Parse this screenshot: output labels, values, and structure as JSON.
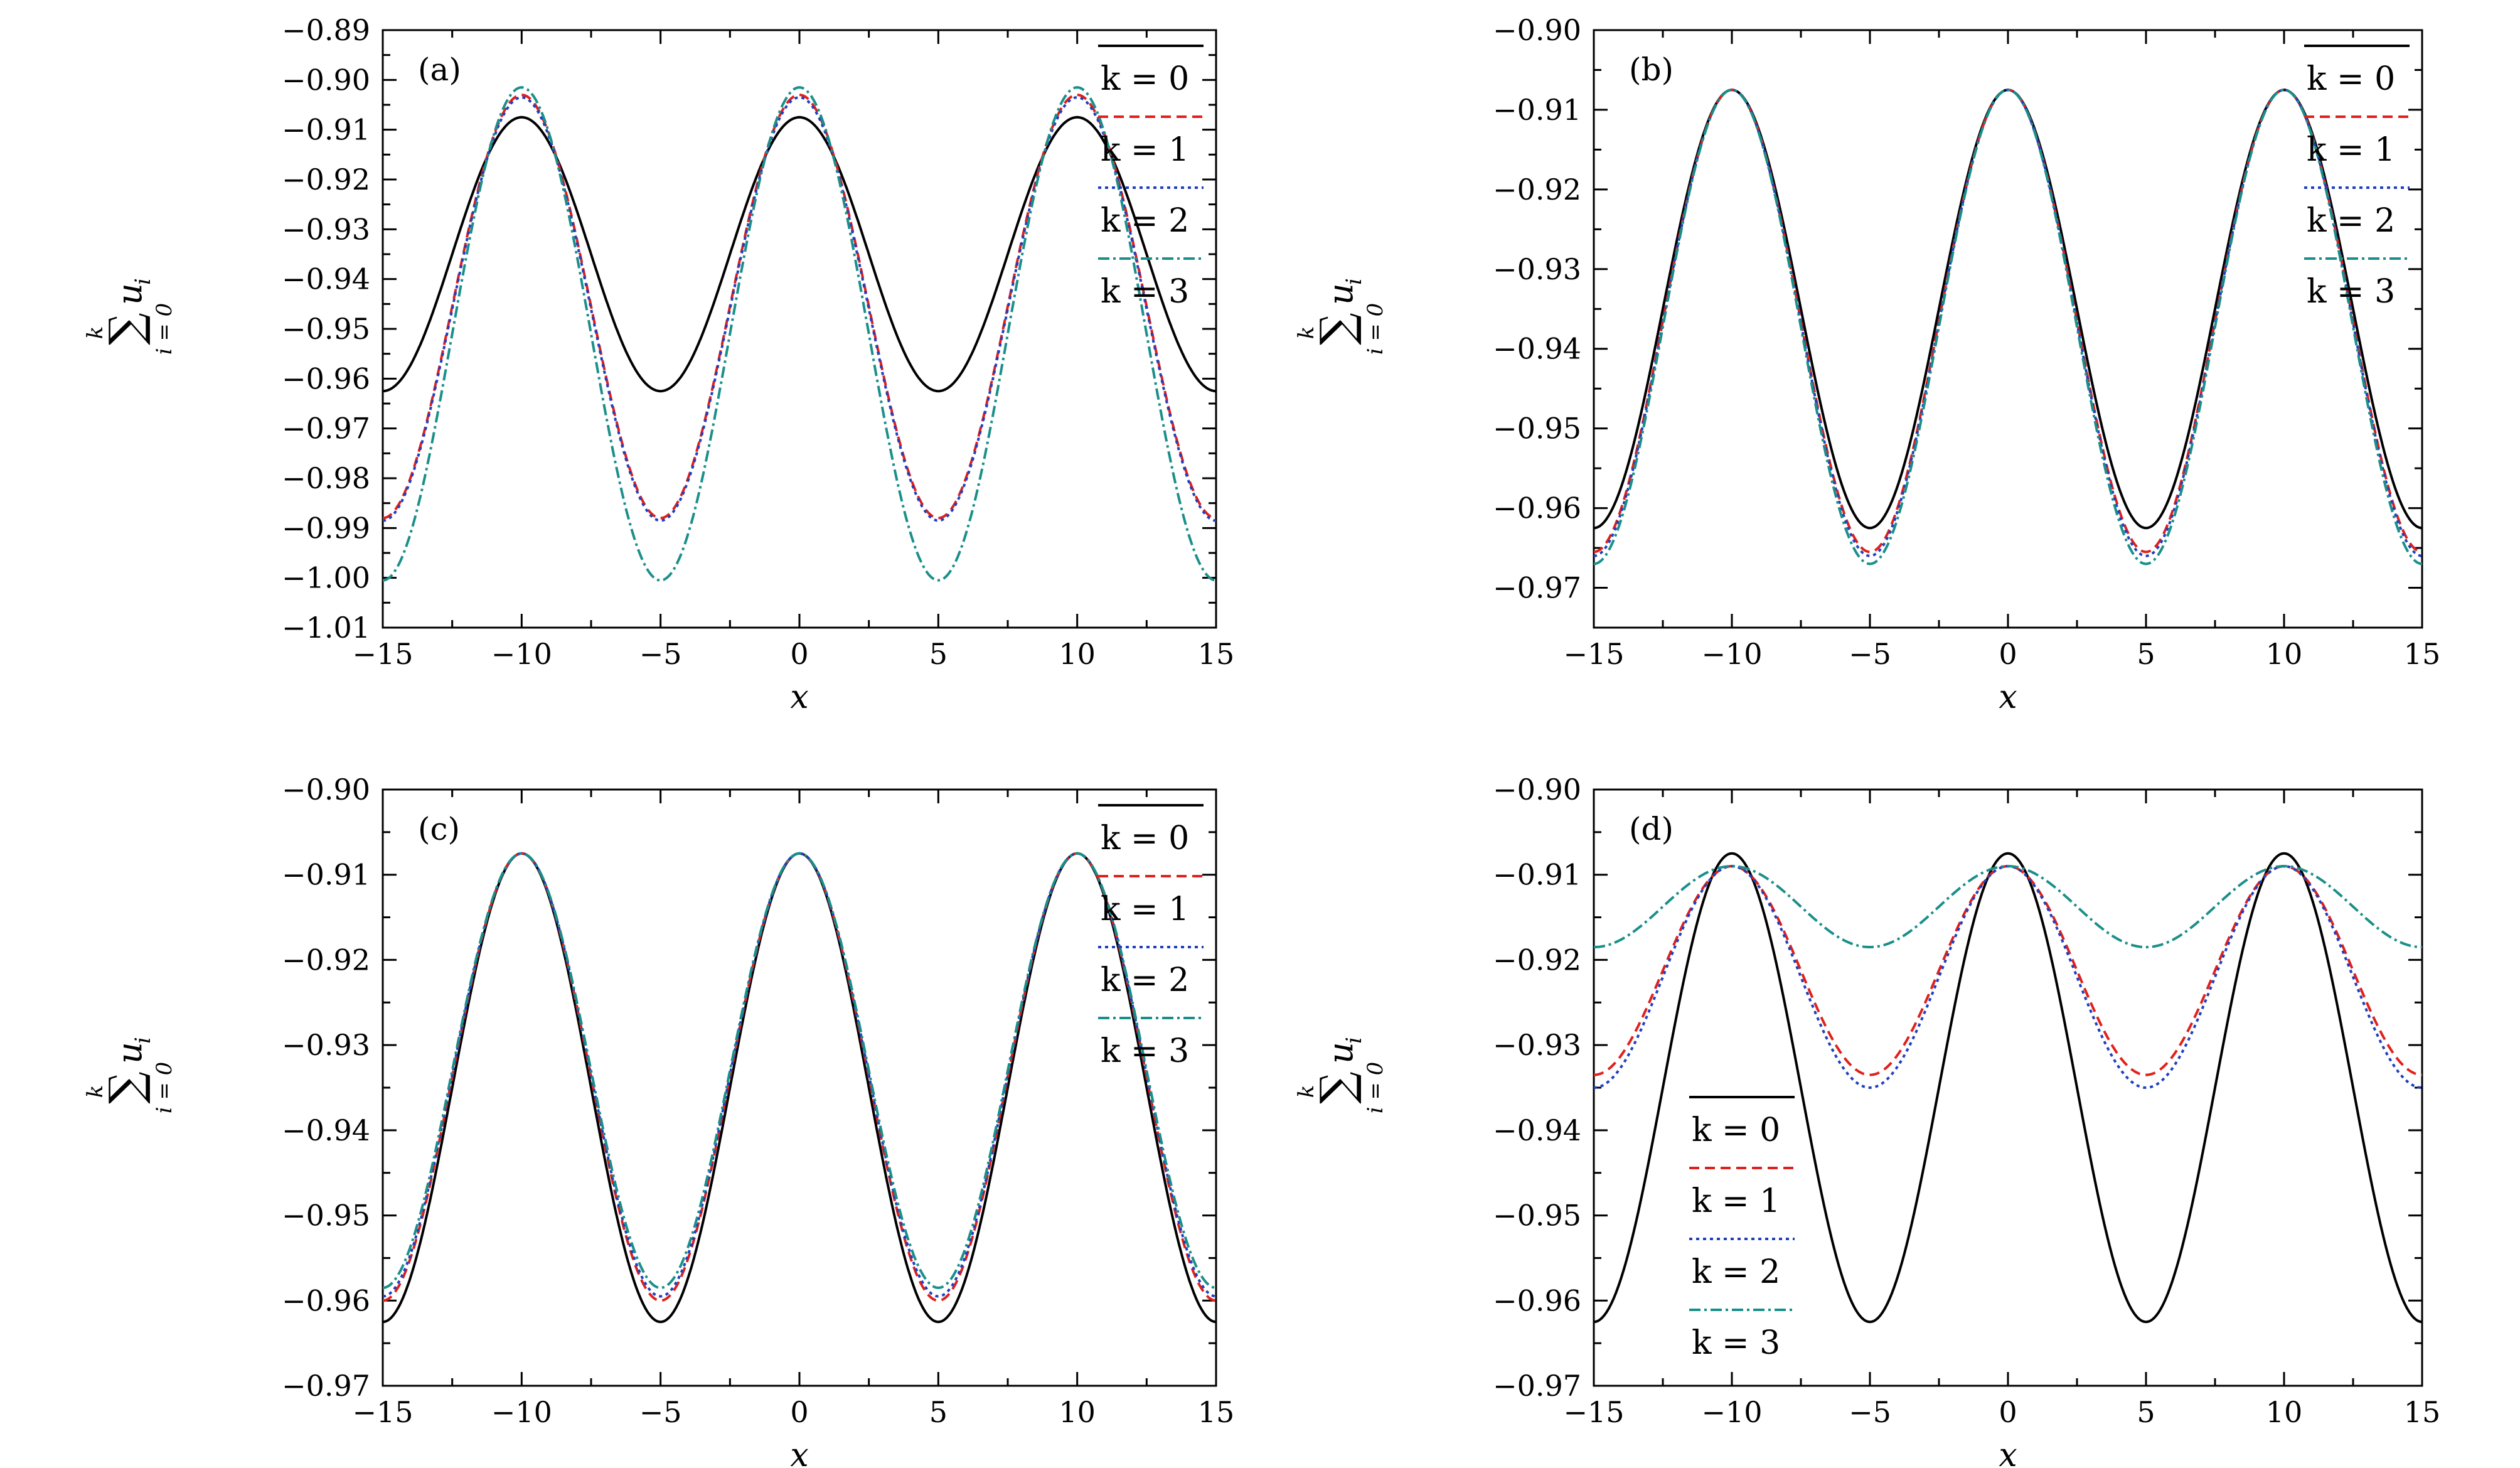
{
  "chart_data": [
    {
      "type": "line",
      "panel_label": "(a)",
      "xlabel": "x",
      "ylabel": {
        "sum_upper": "k",
        "sum_symbol": "∑",
        "sum_lower": "i = 0",
        "term": "u",
        "term_sub": "i"
      },
      "xlim": [
        -15,
        15
      ],
      "ylim": [
        -1.01,
        -0.89
      ],
      "xticks": [
        -15,
        -10,
        -5,
        0,
        5,
        10,
        15
      ],
      "xtick_labels": [
        "−15",
        "−10",
        "−5",
        "0",
        "5",
        "10",
        "15"
      ],
      "yticks": [
        -0.89,
        -0.9,
        -0.91,
        -0.92,
        -0.93,
        -0.94,
        -0.95,
        -0.96,
        -0.97,
        -0.98,
        -0.99,
        -1.0,
        -1.01
      ],
      "ytick_labels": [
        "−0.89",
        "−0.90",
        "−0.91",
        "−0.92",
        "−0.93",
        "−0.94",
        "−0.95",
        "−0.96",
        "−0.97",
        "−0.98",
        "−0.99",
        "−1.00",
        "−1.01"
      ],
      "legend_position": "top-right",
      "series": [
        {
          "name": "k = 0",
          "color": "#000000",
          "dash": "solid",
          "x": [
            -15,
            -12.5,
            -10,
            -7.5,
            -5,
            -2.5,
            0,
            2.5,
            5,
            7.5,
            10,
            12.5,
            15
          ],
          "y": [
            -0.9625,
            -0.935,
            -0.9075,
            -0.935,
            -0.9625,
            -0.935,
            -0.9075,
            -0.935,
            -0.9625,
            -0.935,
            -0.9075,
            -0.935,
            -0.9625
          ]
        },
        {
          "name": "k = 1",
          "color": "#e0201b",
          "dash": "dashed",
          "x": [
            -15,
            -12.5,
            -10,
            -7.5,
            -5,
            -2.5,
            0,
            2.5,
            5,
            7.5,
            10,
            12.5,
            15
          ],
          "y": [
            -0.988,
            -0.9455,
            -0.903,
            -0.9455,
            -0.988,
            -0.9455,
            -0.903,
            -0.9455,
            -0.988,
            -0.9455,
            -0.903,
            -0.9455,
            -0.988
          ]
        },
        {
          "name": "k = 2",
          "color": "#1f3fbf",
          "dash": "dotted",
          "x": [
            -15,
            -12.5,
            -10,
            -7.5,
            -5,
            -2.5,
            0,
            2.5,
            5,
            7.5,
            10,
            12.5,
            15
          ],
          "y": [
            -0.9885,
            -0.946,
            -0.9035,
            -0.946,
            -0.9885,
            -0.946,
            -0.9035,
            -0.946,
            -0.9885,
            -0.946,
            -0.9035,
            -0.946,
            -0.9885
          ]
        },
        {
          "name": "k = 3",
          "color": "#1a8f8a",
          "dash": "dashdot",
          "x": [
            -15,
            -12.5,
            -10,
            -7.5,
            -5,
            -2.5,
            0,
            2.5,
            5,
            7.5,
            10,
            12.5,
            15
          ],
          "y": [
            -1.0005,
            -0.951,
            -0.9015,
            -0.951,
            -1.0005,
            -0.951,
            -0.9015,
            -0.951,
            -1.0005,
            -0.951,
            -0.9015,
            -0.951,
            -1.0005
          ]
        }
      ]
    },
    {
      "type": "line",
      "panel_label": "(b)",
      "xlabel": "x",
      "ylabel": {
        "sum_upper": "k",
        "sum_symbol": "∑",
        "sum_lower": "i = 0",
        "term": "u",
        "term_sub": "i"
      },
      "xlim": [
        -15,
        15
      ],
      "ylim": [
        -0.975,
        -0.9
      ],
      "xticks": [
        -15,
        -10,
        -5,
        0,
        5,
        10,
        15
      ],
      "xtick_labels": [
        "−15",
        "−10",
        "−5",
        "0",
        "5",
        "10",
        "15"
      ],
      "yticks": [
        -0.9,
        -0.91,
        -0.92,
        -0.93,
        -0.94,
        -0.95,
        -0.96,
        -0.97
      ],
      "ytick_labels": [
        "−0.90",
        "−0.91",
        "−0.92",
        "−0.93",
        "−0.94",
        "−0.95",
        "−0.96",
        "−0.97"
      ],
      "legend_position": "top-right",
      "series": [
        {
          "name": "k = 0",
          "color": "#000000",
          "dash": "solid",
          "x": [
            -15,
            -12.5,
            -10,
            -7.5,
            -5,
            -2.5,
            0,
            2.5,
            5,
            7.5,
            10,
            12.5,
            15
          ],
          "y": [
            -0.9625,
            -0.935,
            -0.9075,
            -0.935,
            -0.9625,
            -0.935,
            -0.9075,
            -0.935,
            -0.9625,
            -0.935,
            -0.9075,
            -0.935,
            -0.9625
          ]
        },
        {
          "name": "k = 1",
          "color": "#e0201b",
          "dash": "dashed",
          "x": [
            -15,
            -12.5,
            -10,
            -7.5,
            -5,
            -2.5,
            0,
            2.5,
            5,
            7.5,
            10,
            12.5,
            15
          ],
          "y": [
            -0.9655,
            -0.9365,
            -0.9075,
            -0.9365,
            -0.9655,
            -0.9365,
            -0.9075,
            -0.9365,
            -0.9655,
            -0.9365,
            -0.9075,
            -0.9365,
            -0.9655
          ]
        },
        {
          "name": "k = 2",
          "color": "#1f3fbf",
          "dash": "dotted",
          "x": [
            -15,
            -12.5,
            -10,
            -7.5,
            -5,
            -2.5,
            0,
            2.5,
            5,
            7.5,
            10,
            12.5,
            15
          ],
          "y": [
            -0.966,
            -0.93675,
            -0.9075,
            -0.93675,
            -0.966,
            -0.93675,
            -0.9075,
            -0.93675,
            -0.966,
            -0.93675,
            -0.9075,
            -0.93675,
            -0.966
          ]
        },
        {
          "name": "k = 3",
          "color": "#1a8f8a",
          "dash": "dashdot",
          "x": [
            -15,
            -12.5,
            -10,
            -7.5,
            -5,
            -2.5,
            0,
            2.5,
            5,
            7.5,
            10,
            12.5,
            15
          ],
          "y": [
            -0.967,
            -0.93725,
            -0.9075,
            -0.93725,
            -0.967,
            -0.93725,
            -0.9075,
            -0.93725,
            -0.967,
            -0.93725,
            -0.9075,
            -0.93725,
            -0.967
          ]
        }
      ]
    },
    {
      "type": "line",
      "panel_label": "(c)",
      "xlabel": "x",
      "ylabel": {
        "sum_upper": "k",
        "sum_symbol": "∑",
        "sum_lower": "i = 0",
        "term": "u",
        "term_sub": "i"
      },
      "xlim": [
        -15,
        15
      ],
      "ylim": [
        -0.97,
        -0.9
      ],
      "xticks": [
        -15,
        -10,
        -5,
        0,
        5,
        10,
        15
      ],
      "xtick_labels": [
        "−15",
        "−10",
        "−5",
        "0",
        "5",
        "10",
        "15"
      ],
      "yticks": [
        -0.9,
        -0.91,
        -0.92,
        -0.93,
        -0.94,
        -0.95,
        -0.96,
        -0.97
      ],
      "ytick_labels": [
        "−0.90",
        "−0.91",
        "−0.92",
        "−0.93",
        "−0.94",
        "−0.95",
        "−0.96",
        "−0.97"
      ],
      "legend_position": "top-right",
      "series": [
        {
          "name": "k = 0",
          "color": "#000000",
          "dash": "solid",
          "x": [
            -15,
            -12.5,
            -10,
            -7.5,
            -5,
            -2.5,
            0,
            2.5,
            5,
            7.5,
            10,
            12.5,
            15
          ],
          "y": [
            -0.9625,
            -0.935,
            -0.9075,
            -0.935,
            -0.9625,
            -0.935,
            -0.9075,
            -0.935,
            -0.9625,
            -0.935,
            -0.9075,
            -0.935,
            -0.9625
          ]
        },
        {
          "name": "k = 1",
          "color": "#e0201b",
          "dash": "dashed",
          "x": [
            -15,
            -12.5,
            -10,
            -7.5,
            -5,
            -2.5,
            0,
            2.5,
            5,
            7.5,
            10,
            12.5,
            15
          ],
          "y": [
            -0.96,
            -0.93375,
            -0.9075,
            -0.93375,
            -0.96,
            -0.93375,
            -0.9075,
            -0.93375,
            -0.96,
            -0.93375,
            -0.9075,
            -0.93375,
            -0.96
          ]
        },
        {
          "name": "k = 2",
          "color": "#1f3fbf",
          "dash": "dotted",
          "x": [
            -15,
            -12.5,
            -10,
            -7.5,
            -5,
            -2.5,
            0,
            2.5,
            5,
            7.5,
            10,
            12.5,
            15
          ],
          "y": [
            -0.9595,
            -0.9335,
            -0.9075,
            -0.9335,
            -0.9595,
            -0.9335,
            -0.9075,
            -0.9335,
            -0.9595,
            -0.9335,
            -0.9075,
            -0.9335,
            -0.9595
          ]
        },
        {
          "name": "k = 3",
          "color": "#1a8f8a",
          "dash": "dashdot",
          "x": [
            -15,
            -12.5,
            -10,
            -7.5,
            -5,
            -2.5,
            0,
            2.5,
            5,
            7.5,
            10,
            12.5,
            15
          ],
          "y": [
            -0.9585,
            -0.933,
            -0.9075,
            -0.933,
            -0.9585,
            -0.933,
            -0.9075,
            -0.933,
            -0.9585,
            -0.933,
            -0.9075,
            -0.933,
            -0.9585
          ]
        }
      ]
    },
    {
      "type": "line",
      "panel_label": "(d)",
      "xlabel": "x",
      "ylabel": {
        "sum_upper": "k",
        "sum_symbol": "∑",
        "sum_lower": "i = 0",
        "term": "u",
        "term_sub": "i"
      },
      "xlim": [
        -15,
        15
      ],
      "ylim": [
        -0.97,
        -0.9
      ],
      "xticks": [
        -15,
        -10,
        -5,
        0,
        5,
        10,
        15
      ],
      "xtick_labels": [
        "−15",
        "−10",
        "−5",
        "0",
        "5",
        "10",
        "15"
      ],
      "yticks": [
        -0.9,
        -0.91,
        -0.92,
        -0.93,
        -0.94,
        -0.95,
        -0.96,
        -0.97
      ],
      "ytick_labels": [
        "−0.90",
        "−0.91",
        "−0.92",
        "−0.93",
        "−0.94",
        "−0.95",
        "−0.96",
        "−0.97"
      ],
      "legend_position": "bottom-left",
      "series": [
        {
          "name": "k = 0",
          "color": "#000000",
          "dash": "solid",
          "x": [
            -15,
            -12.5,
            -10,
            -7.5,
            -5,
            -2.5,
            0,
            2.5,
            5,
            7.5,
            10,
            12.5,
            15
          ],
          "y": [
            -0.9625,
            -0.935,
            -0.9075,
            -0.935,
            -0.9625,
            -0.935,
            -0.9075,
            -0.935,
            -0.9625,
            -0.935,
            -0.9075,
            -0.935,
            -0.9625
          ]
        },
        {
          "name": "k = 1",
          "color": "#e0201b",
          "dash": "dashed",
          "x": [
            -15,
            -12.5,
            -10,
            -7.5,
            -5,
            -2.5,
            0,
            2.5,
            5,
            7.5,
            10,
            12.5,
            15
          ],
          "y": [
            -0.9335,
            -0.9212,
            -0.909,
            -0.9212,
            -0.9335,
            -0.9212,
            -0.909,
            -0.9212,
            -0.9335,
            -0.9212,
            -0.909,
            -0.9212,
            -0.9335
          ]
        },
        {
          "name": "k = 2",
          "color": "#1f3fbf",
          "dash": "dotted",
          "x": [
            -15,
            -12.5,
            -10,
            -7.5,
            -5,
            -2.5,
            0,
            2.5,
            5,
            7.5,
            10,
            12.5,
            15
          ],
          "y": [
            -0.935,
            -0.922,
            -0.909,
            -0.922,
            -0.935,
            -0.922,
            -0.909,
            -0.922,
            -0.935,
            -0.922,
            -0.909,
            -0.922,
            -0.935
          ]
        },
        {
          "name": "k = 3",
          "color": "#1a8f8a",
          "dash": "dashdot",
          "x": [
            -15,
            -12.5,
            -10,
            -7.5,
            -5,
            -2.5,
            0,
            2.5,
            5,
            7.5,
            10,
            12.5,
            15
          ],
          "y": [
            -0.9185,
            -0.91375,
            -0.909,
            -0.91375,
            -0.9185,
            -0.91375,
            -0.909,
            -0.91375,
            -0.9185,
            -0.91375,
            -0.909,
            -0.91375,
            -0.9185
          ]
        }
      ]
    }
  ]
}
